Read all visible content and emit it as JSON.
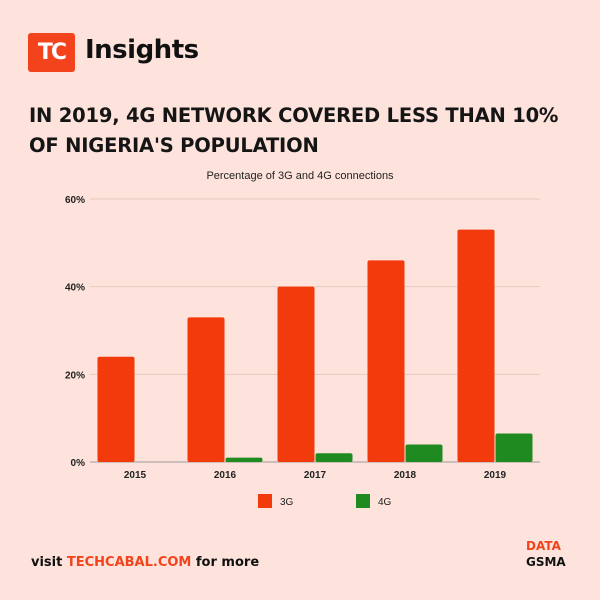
{
  "brand": {
    "logo_text": "TC",
    "name": "Insights"
  },
  "headline": "IN 2019, 4G NETWORK COVERED LESS THAN 10% OF NIGERIA'S POPULATION",
  "footer": {
    "visit_prefix": "visit",
    "site": "TECHCABAL.COM",
    "visit_suffix": "for more",
    "source_label": "DATA",
    "source_value": "GSMA"
  },
  "colors": {
    "background": "#fde3dc",
    "accent": "#f2431d",
    "series_3g": "#f23a0c",
    "series_4g": "#1f8a1f"
  },
  "chart_data": {
    "type": "bar",
    "title": "Percentage of  3G and 4G connections",
    "categories": [
      "2015",
      "2016",
      "2017",
      "2018",
      "2019"
    ],
    "series": [
      {
        "name": "3G",
        "color": "#f23a0c",
        "values": [
          24,
          33,
          40,
          46,
          53
        ]
      },
      {
        "name": "4G",
        "color": "#1f8a1f",
        "values": [
          0,
          1,
          2,
          4,
          6.5
        ]
      }
    ],
    "ylim": [
      0,
      60
    ],
    "yticks": [
      0,
      20,
      40,
      60
    ],
    "ytick_labels": [
      "0%",
      "20%",
      "40%",
      "60%"
    ],
    "grid": true,
    "legend": "bottom"
  }
}
